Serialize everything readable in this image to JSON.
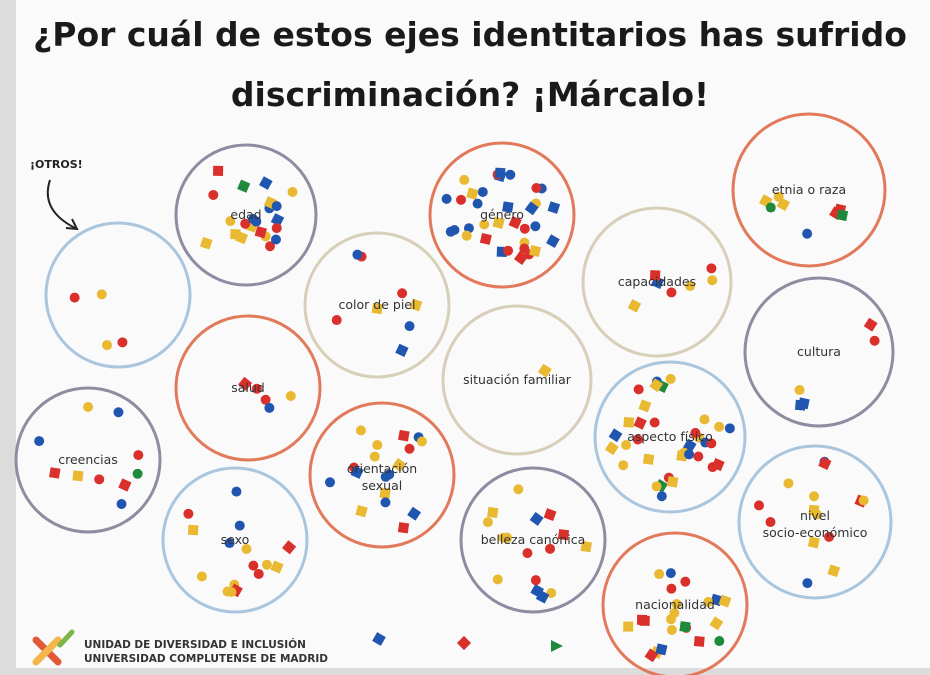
{
  "header": {
    "lines": [
      "¿Por cuál de estos ejes identitarios has sufrido",
      "discriminación? ¡Márcalo!"
    ]
  },
  "others_label": "¡OTROS!",
  "circles": [
    "",
    "edad",
    "género",
    "capacidades",
    "etnia o raza",
    "color de piel",
    "situación familiar",
    "salud",
    "cultura",
    "creencias",
    "aspecto físico",
    "orientación sexual",
    "sexo",
    "belleza canónica",
    "nivel socio-económico",
    "nacionalidad"
  ],
  "footer": {
    "lines": [
      "UNIDAD DE DIVERSIDAD E INCLUSIÓN",
      "UNIVERSIDAD COMPLUTENSE DE MADRID"
    ]
  }
}
